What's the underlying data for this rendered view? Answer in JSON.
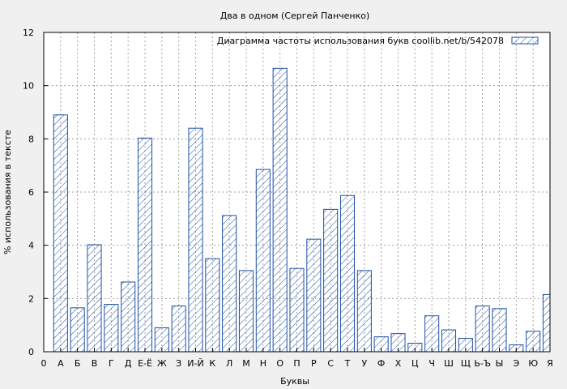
{
  "colors": {
    "background": "#f0f0f0",
    "plot_background": "#ffffff",
    "bar_stroke": "#1f4fa3",
    "bar_hatch": "#1f4fa3",
    "grid": "#a0a0a0",
    "text": "#000000"
  },
  "chart_data": {
    "type": "bar",
    "title": "Два в одном (Сергей Панченко)",
    "xlabel": "Буквы",
    "ylabel": "% использования в тексте",
    "legend_position": "top-right",
    "grid": true,
    "ylim": [
      0,
      12
    ],
    "yticks": [
      0,
      2,
      4,
      6,
      8,
      10,
      12
    ],
    "xticks": [
      "0",
      "А",
      "Б",
      "В",
      "Г",
      "Д",
      "Е-Ё",
      "Ж",
      "З",
      "И-Й",
      "К",
      "Л",
      "М",
      "Н",
      "О",
      "П",
      "Р",
      "С",
      "Т",
      "У",
      "Ф",
      "Х",
      "Ц",
      "Ч",
      "Ш",
      "Щ",
      "Ь-Ъ",
      "Ы",
      "Э",
      "Ю",
      "Я"
    ],
    "categories": [
      "А",
      "Б",
      "В",
      "Г",
      "Д",
      "Е-Ё",
      "Ж",
      "З",
      "И-Й",
      "К",
      "Л",
      "М",
      "Н",
      "О",
      "П",
      "Р",
      "С",
      "Т",
      "У",
      "Ф",
      "Х",
      "Ц",
      "Ч",
      "Ш",
      "Щ",
      "Ь-Ъ",
      "Ы",
      "Э",
      "Ю",
      "Я"
    ],
    "series": [
      {
        "name": "Диаграмма частоты использования букв  coollib.net/b/542078",
        "values": [
          8.9,
          1.65,
          4.02,
          1.78,
          2.62,
          8.03,
          0.9,
          1.72,
          8.4,
          3.5,
          5.12,
          3.05,
          6.85,
          10.65,
          3.13,
          4.23,
          5.35,
          5.87,
          3.05,
          0.56,
          0.68,
          0.32,
          1.35,
          0.82,
          0.5,
          1.72,
          1.62,
          0.26,
          0.77,
          2.15
        ]
      }
    ]
  }
}
